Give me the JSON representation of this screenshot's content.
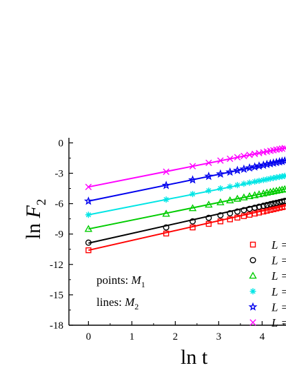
{
  "chart_data": {
    "type": "scatter",
    "xlabel": {
      "main": "ln t"
    },
    "ylabel": {
      "main": "ln ",
      "var": "F",
      "sub": "2"
    },
    "xlim": [
      -0.45,
      4.55
    ],
    "ylim": [
      -18,
      0.5
    ],
    "xticks": [
      0,
      1,
      2,
      3,
      4
    ],
    "yticks": [
      0,
      -3,
      -6,
      -9,
      -12,
      -15,
      -18
    ],
    "x": [
      0,
      1.79,
      2.4,
      2.77,
      3.04,
      3.26,
      3.43,
      3.58,
      3.71,
      3.83,
      3.93,
      4.03,
      4.11,
      4.19,
      4.26,
      4.33,
      4.4,
      4.46,
      4.52
    ],
    "notes": [
      {
        "text": "points: ",
        "var": "M",
        "sub": "1"
      },
      {
        "text": "lines: ",
        "var": "M",
        "sub": "2"
      }
    ],
    "series": [
      {
        "legend": "L =",
        "color": "#ff0000",
        "marker": "square",
        "fit": {
          "a": -10.6,
          "b": 0.97
        },
        "values": [
          -10.6,
          -8.95,
          -8.35,
          -8.0,
          -7.75,
          -7.55,
          -7.38,
          -7.23,
          -7.1,
          -6.98,
          -6.88,
          -6.78,
          -6.7,
          -6.62,
          -6.55,
          -6.48,
          -6.41,
          -6.35,
          -6.29
        ]
      },
      {
        "legend": "L =",
        "color": "#000000",
        "marker": "circle",
        "fit": {
          "a": -9.9,
          "b": 0.96
        },
        "values": [
          -9.85,
          -8.35,
          -7.75,
          -7.4,
          -7.15,
          -6.95,
          -6.78,
          -6.64,
          -6.51,
          -6.4,
          -6.3,
          -6.21,
          -6.13,
          -6.05,
          -5.98,
          -5.92,
          -5.85,
          -5.79,
          -5.73
        ]
      },
      {
        "legend": "L =",
        "color": "#00cc00",
        "marker": "triangle",
        "fit": {
          "a": -8.5,
          "b": 0.87
        },
        "values": [
          -8.5,
          -7.0,
          -6.45,
          -6.1,
          -5.87,
          -5.68,
          -5.52,
          -5.39,
          -5.27,
          -5.17,
          -5.08,
          -5.0,
          -4.92,
          -4.85,
          -4.79,
          -4.73,
          -4.67,
          -4.62,
          -4.57
        ]
      },
      {
        "legend": "L =",
        "color": "#00e5e5",
        "marker": "asterisk",
        "fit": {
          "a": -7.1,
          "b": 0.84
        },
        "values": [
          -7.1,
          -5.6,
          -5.05,
          -4.72,
          -4.5,
          -4.32,
          -4.17,
          -4.04,
          -3.93,
          -3.83,
          -3.75,
          -3.67,
          -3.6,
          -3.53,
          -3.47,
          -3.41,
          -3.36,
          -3.31,
          -3.26
        ]
      },
      {
        "legend": "L =",
        "color": "#0000ee",
        "marker": "star",
        "fit": {
          "a": -5.75,
          "b": 0.88
        },
        "values": [
          -5.75,
          -4.2,
          -3.65,
          -3.3,
          -3.07,
          -2.88,
          -2.72,
          -2.59,
          -2.47,
          -2.37,
          -2.28,
          -2.2,
          -2.12,
          -2.05,
          -1.99,
          -1.93,
          -1.87,
          -1.82,
          -1.77
        ]
      },
      {
        "legend": "L =",
        "color": "#ff00ff",
        "marker": "cross",
        "fit": {
          "a": -4.35,
          "b": 0.85
        },
        "values": [
          -4.35,
          -2.85,
          -2.3,
          -1.97,
          -1.75,
          -1.57,
          -1.42,
          -1.3,
          -1.19,
          -1.09,
          -1.01,
          -0.93,
          -0.86,
          -0.79,
          -0.73,
          -0.67,
          -0.62,
          -0.57,
          -0.52
        ]
      }
    ]
  }
}
